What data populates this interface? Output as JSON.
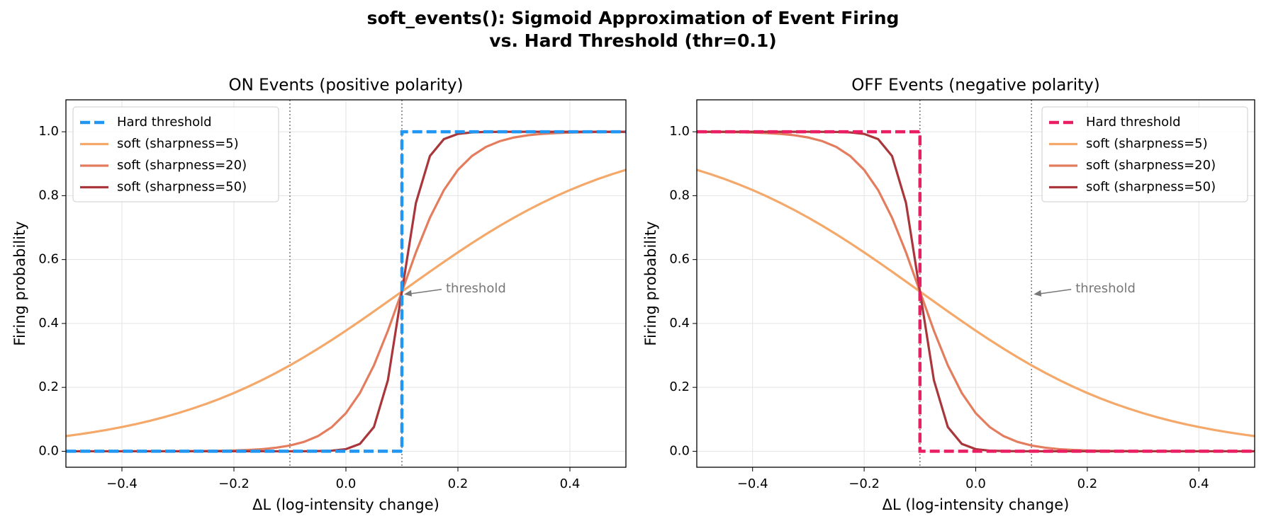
{
  "title": [
    "soft_events(): Sigmoid Approximation of Event Firing",
    "vs. Hard Threshold  (thr=0.1)"
  ],
  "chart_data": [
    {
      "type": "line",
      "title": "ON Events (positive polarity)",
      "xlabel": "ΔL  (log-intensity change)",
      "ylabel": "Firing probability",
      "xlim": [
        -0.5,
        0.5
      ],
      "ylim": [
        -0.05,
        1.1
      ],
      "grid": true,
      "legend": "upper left",
      "xticks": [
        {
          "value": -0.4,
          "label": "−0.4"
        },
        {
          "value": -0.2,
          "label": "−0.2"
        },
        {
          "value": 0,
          "label": "0.0"
        },
        {
          "value": 0.2,
          "label": "0.2"
        },
        {
          "value": 0.4,
          "label": "0.4"
        }
      ],
      "yticks": [
        {
          "value": 0,
          "label": "0.0"
        },
        {
          "value": 0.2,
          "label": "0.2"
        },
        {
          "value": 0.4,
          "label": "0.4"
        },
        {
          "value": 0.6,
          "label": "0.6"
        },
        {
          "value": 0.8,
          "label": "0.8"
        },
        {
          "value": 1,
          "label": "1.0"
        }
      ],
      "vlines": [
        -0.1,
        0.1
      ],
      "annotation": {
        "text": "threshold",
        "x": 0.1,
        "y": 0.5
      },
      "x": [
        -0.5,
        -0.475,
        -0.45,
        -0.425,
        -0.4,
        -0.375,
        -0.35,
        -0.325,
        -0.3,
        -0.275,
        -0.25,
        -0.225,
        -0.2,
        -0.175,
        -0.15,
        -0.125,
        -0.1,
        -0.075,
        -0.05,
        -0.025,
        0,
        0.025,
        0.05,
        0.075,
        0.1,
        0.125,
        0.15,
        0.175,
        0.2,
        0.225,
        0.25,
        0.275,
        0.3,
        0.325,
        0.35,
        0.375,
        0.4,
        0.425,
        0.45,
        0.475,
        0.5
      ],
      "series": [
        {
          "name": "Hard threshold",
          "color": "#2196f3",
          "dashed": true,
          "x": [
            -0.5,
            0.1,
            0.1,
            0.5
          ],
          "values": [
            0,
            0,
            1,
            1
          ]
        },
        {
          "name": "soft (sharpness=5)",
          "color": "#f4a86a",
          "values": [
            0.0474,
            0.0534,
            0.0601,
            0.0676,
            0.0759,
            0.0851,
            0.0953,
            0.1067,
            0.1192,
            0.133,
            0.148,
            0.1645,
            0.1824,
            0.2018,
            0.2227,
            0.2451,
            0.2689,
            0.2942,
            0.3208,
            0.3486,
            0.3775,
            0.4073,
            0.4378,
            0.4688,
            0.5,
            0.5312,
            0.5622,
            0.5927,
            0.6225,
            0.6514,
            0.6792,
            0.7058,
            0.7311,
            0.7549,
            0.7773,
            0.7982,
            0.8176,
            0.8355,
            0.852,
            0.867,
            0.8808
          ]
        },
        {
          "name": "soft (sharpness=20)",
          "color": "#e47c5e",
          "values": [
            0,
            0,
            0,
            0,
            0,
            0.0001,
            0.0001,
            0.0002,
            0.0003,
            0.0006,
            0.0009,
            0.0015,
            0.0025,
            0.0041,
            0.0067,
            0.011,
            0.018,
            0.0293,
            0.0474,
            0.0759,
            0.1192,
            0.1824,
            0.2689,
            0.3775,
            0.5,
            0.6225,
            0.7311,
            0.8176,
            0.8808,
            0.9241,
            0.9526,
            0.9707,
            0.982,
            0.989,
            0.9933,
            0.9959,
            0.9975,
            0.9985,
            0.9991,
            0.9994,
            0.9997
          ]
        },
        {
          "name": "soft (sharpness=50)",
          "color": "#a8363b",
          "values": [
            0,
            0,
            0,
            0,
            0,
            0,
            0,
            0,
            0,
            0,
            0,
            0,
            0,
            0,
            0,
            0,
            0,
            0.0002,
            0.0006,
            0.0019,
            0.0067,
            0.023,
            0.0759,
            0.2227,
            0.5,
            0.7773,
            0.9241,
            0.977,
            0.9933,
            0.9981,
            0.9994,
            0.9998,
            1,
            1,
            1,
            1,
            1,
            1,
            1,
            1,
            1
          ]
        }
      ]
    },
    {
      "type": "line",
      "title": "OFF Events (negative polarity)",
      "xlabel": "ΔL  (log-intensity change)",
      "ylabel": "Firing probability",
      "xlim": [
        -0.5,
        0.5
      ],
      "ylim": [
        -0.05,
        1.1
      ],
      "grid": true,
      "legend": "upper right",
      "xticks": [
        {
          "value": -0.4,
          "label": "−0.4"
        },
        {
          "value": -0.2,
          "label": "−0.2"
        },
        {
          "value": 0,
          "label": "0.0"
        },
        {
          "value": 0.2,
          "label": "0.2"
        },
        {
          "value": 0.4,
          "label": "0.4"
        }
      ],
      "yticks": [
        {
          "value": 0,
          "label": "0.0"
        },
        {
          "value": 0.2,
          "label": "0.2"
        },
        {
          "value": 0.4,
          "label": "0.4"
        },
        {
          "value": 0.6,
          "label": "0.6"
        },
        {
          "value": 0.8,
          "label": "0.8"
        },
        {
          "value": 1,
          "label": "1.0"
        }
      ],
      "vlines": [
        -0.1,
        0.1
      ],
      "annotation": {
        "text": "threshold",
        "x": 0.1,
        "y": 0.5
      },
      "x": [
        -0.5,
        -0.475,
        -0.45,
        -0.425,
        -0.4,
        -0.375,
        -0.35,
        -0.325,
        -0.3,
        -0.275,
        -0.25,
        -0.225,
        -0.2,
        -0.175,
        -0.15,
        -0.125,
        -0.1,
        -0.075,
        -0.05,
        -0.025,
        0,
        0.025,
        0.05,
        0.075,
        0.1,
        0.125,
        0.15,
        0.175,
        0.2,
        0.225,
        0.25,
        0.275,
        0.3,
        0.325,
        0.35,
        0.375,
        0.4,
        0.425,
        0.45,
        0.475,
        0.5
      ],
      "series": [
        {
          "name": "Hard threshold",
          "color": "#e91e63",
          "dashed": true,
          "x": [
            -0.5,
            -0.1,
            -0.1,
            0.5
          ],
          "values": [
            1,
            1,
            0,
            0
          ]
        },
        {
          "name": "soft (sharpness=5)",
          "color": "#f4a86a",
          "values": [
            0.8808,
            0.867,
            0.852,
            0.8355,
            0.8176,
            0.7982,
            0.7773,
            0.7549,
            0.7311,
            0.7058,
            0.6792,
            0.6514,
            0.6225,
            0.5927,
            0.5622,
            0.5312,
            0.5,
            0.4688,
            0.4378,
            0.4073,
            0.3775,
            0.3486,
            0.3208,
            0.2942,
            0.2689,
            0.2451,
            0.2227,
            0.2018,
            0.1824,
            0.1645,
            0.148,
            0.133,
            0.1192,
            0.1067,
            0.0953,
            0.0851,
            0.0759,
            0.0676,
            0.0601,
            0.0534,
            0.0474
          ]
        },
        {
          "name": "soft (sharpness=20)",
          "color": "#e47c5e",
          "values": [
            0.9997,
            0.9994,
            0.9991,
            0.9985,
            0.9975,
            0.9959,
            0.9933,
            0.989,
            0.982,
            0.9707,
            0.9526,
            0.9241,
            0.8808,
            0.8176,
            0.7311,
            0.6225,
            0.5,
            0.3775,
            0.2689,
            0.1824,
            0.1192,
            0.0759,
            0.0474,
            0.0293,
            0.018,
            0.011,
            0.0067,
            0.0041,
            0.0025,
            0.0015,
            0.0009,
            0.0006,
            0.0003,
            0.0002,
            0.0001,
            0.0001,
            0,
            0,
            0,
            0,
            0
          ]
        },
        {
          "name": "soft (sharpness=50)",
          "color": "#a8363b",
          "values": [
            1,
            1,
            1,
            1,
            1,
            1,
            1,
            1,
            1,
            0.9998,
            0.9994,
            0.9981,
            0.9933,
            0.977,
            0.9241,
            0.7773,
            0.5,
            0.2227,
            0.0759,
            0.023,
            0.0067,
            0.0019,
            0.0006,
            0.0002,
            0,
            0,
            0,
            0,
            0,
            0,
            0,
            0,
            0,
            0,
            0,
            0,
            0,
            0,
            0,
            0,
            0
          ]
        }
      ]
    }
  ]
}
